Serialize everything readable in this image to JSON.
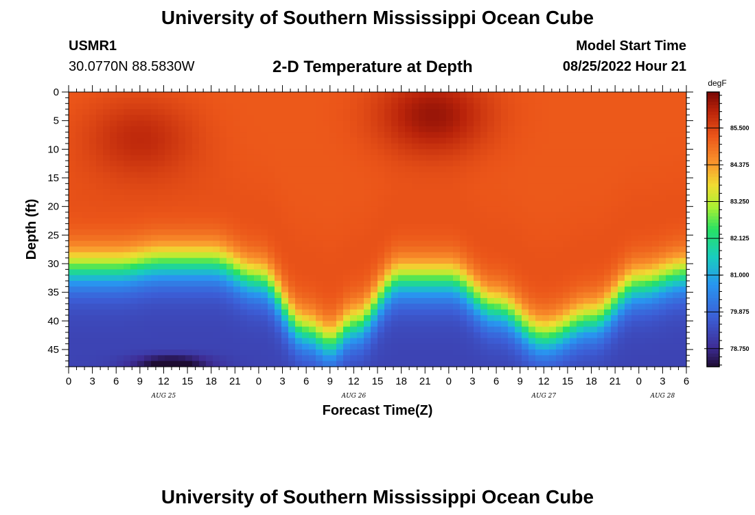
{
  "header": {
    "title": "University of Southern Mississippi Ocean Cube",
    "station": "USMR1",
    "coordinates": "30.0770N  88.5830W",
    "subtitle": "2-D Temperature at Depth",
    "model_start_label": "Model Start Time",
    "model_start_value": "08/25/2022 Hour 21"
  },
  "footer": {
    "title": "University of Southern Mississippi Ocean Cube"
  },
  "chart_data": {
    "type": "heatmap",
    "title": "2-D Temperature at Depth",
    "xlabel": "Forecast Time(Z)",
    "ylabel": "Depth (ft)",
    "x_range_hours": [
      0,
      78
    ],
    "y_range_ft": [
      0,
      48
    ],
    "x_ticks": [
      "0",
      "3",
      "6",
      "9",
      "12",
      "15",
      "18",
      "21",
      "0",
      "3",
      "6",
      "9",
      "12",
      "15",
      "18",
      "21",
      "0",
      "3",
      "6",
      "9",
      "12",
      "15",
      "18",
      "21",
      "0",
      "3",
      "6"
    ],
    "x_date_labels": [
      {
        "label": "AUG 25",
        "hour": 12
      },
      {
        "label": "AUG 26",
        "hour": 36
      },
      {
        "label": "AUG 27",
        "hour": 60
      },
      {
        "label": "AUG 28",
        "hour": 75
      }
    ],
    "y_ticks": [
      0,
      5,
      10,
      15,
      20,
      25,
      30,
      35,
      40,
      45
    ],
    "colorbar": {
      "unit": "degF",
      "ticks": [
        "85.500",
        "84.375",
        "83.250",
        "82.125",
        "81.000",
        "79.875",
        "78.750"
      ],
      "range": [
        78.2,
        86.6
      ]
    },
    "field_model": {
      "surface_temp_degF": 85.2,
      "bottom_temp_degF": 79.2,
      "thermocline_depth_ft_by_hour": [
        [
          0,
          31
        ],
        [
          6,
          31
        ],
        [
          12,
          30
        ],
        [
          18,
          30
        ],
        [
          24,
          33
        ],
        [
          30,
          42
        ],
        [
          33,
          44
        ],
        [
          36,
          41
        ],
        [
          42,
          33
        ],
        [
          48,
          33
        ],
        [
          54,
          38
        ],
        [
          60,
          43
        ],
        [
          66,
          40
        ],
        [
          72,
          34
        ],
        [
          78,
          32
        ]
      ],
      "warm_cores": [
        {
          "hour": 9,
          "depth_ft": 8,
          "temp_degF": 85.9
        },
        {
          "hour": 46,
          "depth_ft": 4,
          "temp_degF": 86.3
        }
      ],
      "cold_spot": {
        "hour": 13,
        "depth_ft": 47.5,
        "temp_degF": 78.0
      }
    }
  }
}
